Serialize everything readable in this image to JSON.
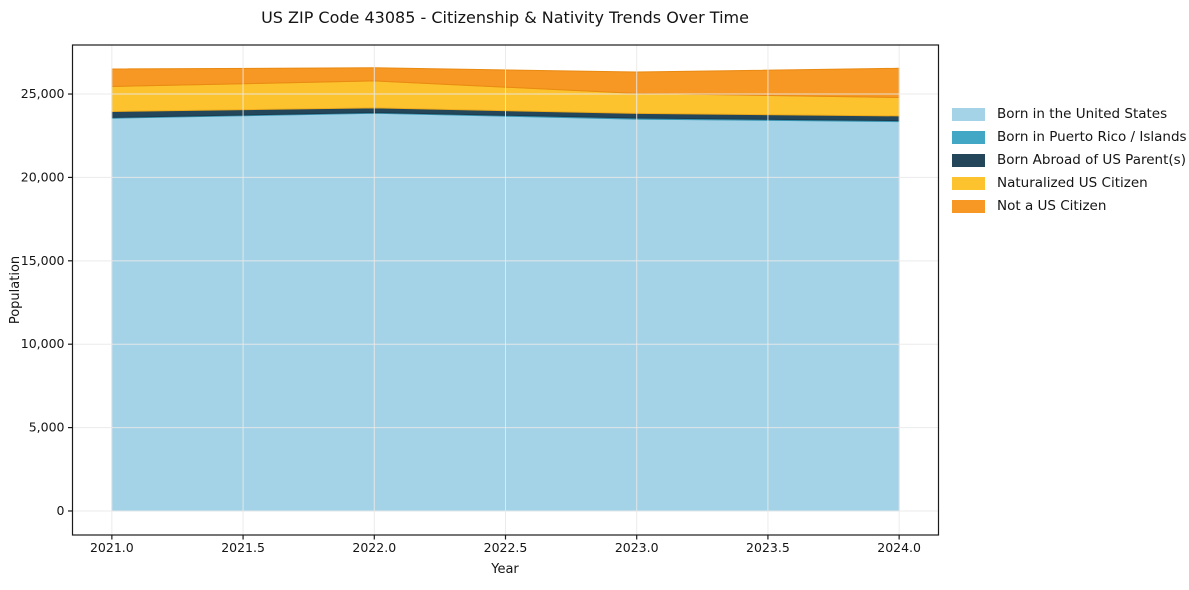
{
  "chart_data": {
    "type": "area",
    "stacked": true,
    "title": "US ZIP Code 43085 - Citizenship & Nativity Trends Over Time",
    "xlabel": "Year",
    "ylabel": "Population",
    "x": [
      2021,
      2022,
      2023,
      2024
    ],
    "series": [
      {
        "name": "Born in the United States",
        "color": "#a4d3e8",
        "edge": "#8ec4dd",
        "values": [
          23550,
          23850,
          23500,
          23350
        ]
      },
      {
        "name": "Born in Puerto Rico / Islands",
        "color": "#41a7c5",
        "edge": "#3694b1",
        "values": [
          50,
          40,
          60,
          60
        ]
      },
      {
        "name": "Born Abroad of US Parent(s)",
        "color": "#24465a",
        "edge": "#1d3b4d",
        "values": [
          350,
          280,
          280,
          280
        ]
      },
      {
        "name": "Naturalized US Citizen",
        "color": "#fdc32e",
        "edge": "#eeab1c",
        "values": [
          1500,
          1620,
          1200,
          1100
        ]
      },
      {
        "name": "Not a US Citizen",
        "color": "#f79724",
        "edge": "#e98a12",
        "values": [
          1050,
          780,
          1280,
          1750
        ]
      }
    ],
    "x_ticks": [
      "2021.0",
      "2021.5",
      "2022.0",
      "2022.5",
      "2023.0",
      "2023.5",
      "2024.0"
    ],
    "x_tick_values": [
      2021,
      2021.5,
      2022,
      2022.5,
      2023,
      2023.5,
      2024
    ],
    "y_ticks": [
      "0",
      "5,000",
      "10,000",
      "15,000",
      "20,000",
      "25,000"
    ],
    "y_tick_values": [
      0,
      5000,
      10000,
      15000,
      20000,
      25000
    ],
    "xlim": [
      2020.85,
      2024.15
    ],
    "ylim": [
      -1440,
      27940
    ],
    "grid": true,
    "legend_position": "right",
    "colors": {
      "background": "#ffffff",
      "gridline": "#e9e9e9",
      "spine": "#1a1a1a",
      "text": "#151515"
    }
  }
}
